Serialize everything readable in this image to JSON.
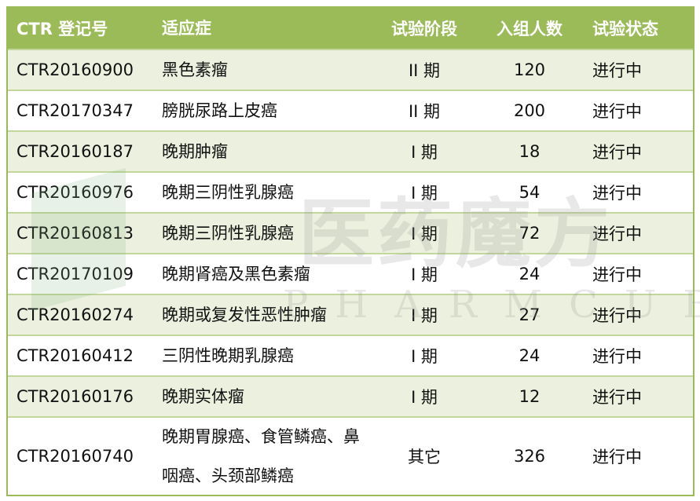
{
  "headers": [
    "CTR 登记号",
    "适应症",
    "试验阶段",
    "入组人数",
    "试验状态"
  ],
  "rows": [
    [
      "CTR20160900",
      "黑色素瘤",
      "II 期",
      "120",
      "进行中"
    ],
    [
      "CTR20170347",
      "膀胱尿路上皮癌",
      "II 期",
      "200",
      "进行中"
    ],
    [
      "CTR20160187",
      "晚期肿瘤",
      "I 期",
      "18",
      "进行中"
    ],
    [
      "CTR20160976",
      "晚期三阴性乳腺癌",
      "I 期",
      "54",
      "进行中"
    ],
    [
      "CTR20160813",
      "晚期三阴性乳腺癌",
      "I 期",
      "72",
      "进行中"
    ],
    [
      "CTR20170109",
      "晚期肾癌及黑色素瘤",
      "I 期",
      "24",
      "进行中"
    ],
    [
      "CTR20160274",
      "晚期或复发性恶性肿瘤",
      "I 期",
      "27",
      "进行中"
    ],
    [
      "CTR20160412",
      "三阴性晚期乳腺癌",
      "I 期",
      "24",
      "进行中"
    ],
    [
      "CTR20160176",
      "晚期实体瘤",
      "I 期",
      "12",
      "进行中"
    ],
    [
      "CTR20160740",
      "晚期胃腺癌、食管鳞癌、鼻咽癌、头颈部鳞癌",
      "其它",
      "326",
      "进行中"
    ]
  ],
  "watermark": {
    "cn": "医药魔方",
    "en": "PHARMCUBE"
  },
  "colors": {
    "header": "#9bbb59",
    "alt_row": "#ebf1de",
    "border": "#c3d69b"
  }
}
